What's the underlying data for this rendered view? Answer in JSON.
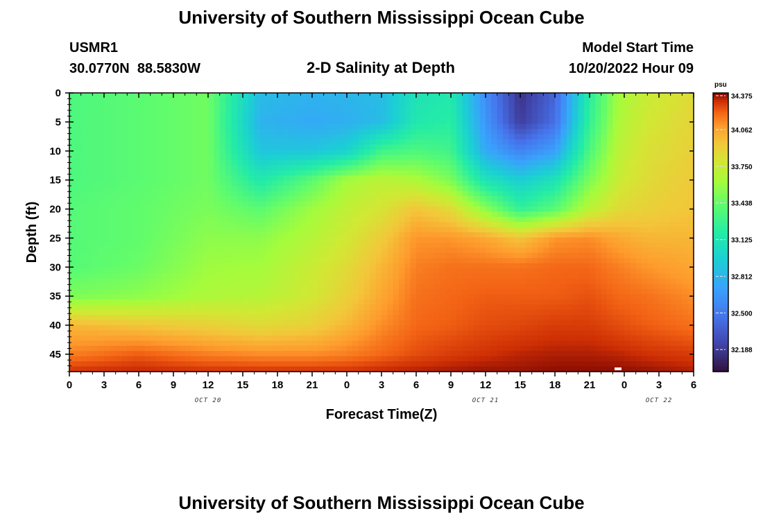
{
  "header": {
    "title": "University of Southern Mississippi Ocean Cube",
    "station_id": "USMR1",
    "station_coords": "30.0770N  88.5830W",
    "center_title": "2-D Salinity at Depth",
    "model_start_label": "Model Start Time",
    "model_start_value": "10/20/2022 Hour 09",
    "footer_title": "University of Southern Mississippi Ocean Cube"
  },
  "chart_data": {
    "type": "heatmap",
    "title": "2-D Salinity at Depth",
    "xlabel": "Forecast Time(Z)",
    "ylabel": "Depth (ft)",
    "x_tick_labels": [
      "0",
      "3",
      "6",
      "9",
      "12",
      "15",
      "18",
      "21",
      "0",
      "3",
      "6",
      "9",
      "12",
      "15",
      "18",
      "21",
      "0",
      "3",
      "6"
    ],
    "x_range_hours": [
      0,
      54
    ],
    "date_labels": [
      {
        "text": "OCT 20",
        "hour": 12
      },
      {
        "text": "OCT 21",
        "hour": 36
      },
      {
        "text": "OCT 22",
        "hour": 51
      }
    ],
    "y_tick_labels": [
      "0",
      "5",
      "10",
      "15",
      "20",
      "25",
      "30",
      "35",
      "40",
      "45"
    ],
    "ylim": [
      0,
      48
    ],
    "y_inverted": true,
    "colorbar": {
      "unit": "psu",
      "min": 32.0,
      "max": 34.375,
      "tick_labels": [
        "34.375",
        "34.062",
        "33.750",
        "33.438",
        "33.125",
        "32.812",
        "32.500",
        "32.188"
      ]
    },
    "salinity_grid": {
      "x_hours": [
        0,
        6,
        12,
        16.5,
        21,
        24,
        27,
        30,
        33,
        36,
        39,
        42,
        45,
        47.5,
        50,
        54
      ],
      "depths_ft": [
        0,
        5,
        10,
        15,
        20,
        25,
        30,
        35,
        40,
        45,
        48
      ],
      "values": [
        [
          33.35,
          33.4,
          33.47,
          32.85,
          32.8,
          32.82,
          32.85,
          33.1,
          33.15,
          32.6,
          32.15,
          32.4,
          33.2,
          33.62,
          33.75,
          33.85
        ],
        [
          33.35,
          33.4,
          33.47,
          32.8,
          32.75,
          32.78,
          32.85,
          33.15,
          33.2,
          32.65,
          32.2,
          32.45,
          33.25,
          33.65,
          33.78,
          33.88
        ],
        [
          33.35,
          33.4,
          33.47,
          32.9,
          32.9,
          32.98,
          33.3,
          33.35,
          33.3,
          32.75,
          32.55,
          32.7,
          33.35,
          33.7,
          33.82,
          33.9
        ],
        [
          33.35,
          33.4,
          33.47,
          33.15,
          33.4,
          33.62,
          33.7,
          33.65,
          33.5,
          33.1,
          32.95,
          33.1,
          33.5,
          33.75,
          33.85,
          33.93
        ],
        [
          33.38,
          33.42,
          33.5,
          33.4,
          33.6,
          33.72,
          33.8,
          33.95,
          33.85,
          33.55,
          33.25,
          33.4,
          33.7,
          33.85,
          33.9,
          33.95
        ],
        [
          33.38,
          33.42,
          33.55,
          33.55,
          33.68,
          33.78,
          33.92,
          34.1,
          34.1,
          34.05,
          33.95,
          34.1,
          34.12,
          34.05,
          34.0,
          34.0
        ],
        [
          33.38,
          33.45,
          33.6,
          33.62,
          33.75,
          33.85,
          34.0,
          34.15,
          34.18,
          34.18,
          34.18,
          34.2,
          34.2,
          34.15,
          34.1,
          34.05
        ],
        [
          33.5,
          33.55,
          33.65,
          33.68,
          33.78,
          33.9,
          34.05,
          34.18,
          34.2,
          34.22,
          34.22,
          34.22,
          34.24,
          34.2,
          34.18,
          34.12
        ],
        [
          34.0,
          33.95,
          33.9,
          33.85,
          33.9,
          34.0,
          34.12,
          34.2,
          34.22,
          34.25,
          34.26,
          34.28,
          34.28,
          34.25,
          34.22,
          34.18
        ],
        [
          34.15,
          34.22,
          34.15,
          34.12,
          34.12,
          34.15,
          34.2,
          34.25,
          34.28,
          34.3,
          34.32,
          34.33,
          34.33,
          34.32,
          34.3,
          34.28
        ],
        [
          34.3,
          34.32,
          34.3,
          34.3,
          34.3,
          34.3,
          34.32,
          34.33,
          34.34,
          34.35,
          34.35,
          34.36,
          34.36,
          34.36,
          34.35,
          34.33
        ]
      ]
    },
    "grid": false,
    "legend": "colorbar-right"
  }
}
